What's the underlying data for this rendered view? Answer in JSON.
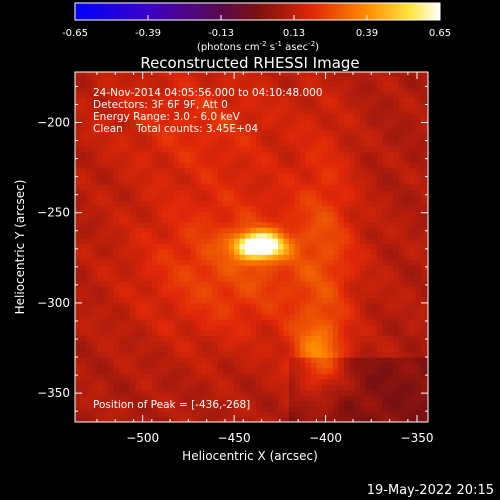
{
  "chart_data": {
    "type": "heatmap",
    "title": "Reconstructed RHESSI Image",
    "xlabel": "Heliocentric X (arcsec)",
    "ylabel": "Heliocentric Y (arcsec)",
    "xlim": [
      -537,
      -344
    ],
    "ylim": [
      -366,
      -172
    ],
    "x_ticks": [
      -500,
      -450,
      -400,
      -350
    ],
    "y_ticks": [
      -200,
      -250,
      -300,
      -350
    ],
    "colorbar": {
      "ticks": [
        -0.65,
        -0.39,
        -0.13,
        0.13,
        0.39,
        0.65
      ],
      "range": [
        -0.65,
        0.65
      ],
      "label_parts": [
        "(photons cm",
        "-2",
        " s",
        "-1",
        " asec",
        "-2",
        ")"
      ],
      "colormap": "blue-purple-red-yellow-white"
    },
    "annotations": [
      "24-Nov-2014 04:05:56.000 to 04:10:48.000",
      "Detectors: 3F 6F 9F, Att 0",
      "Energy Range: 3.0 - 6.0 keV",
      "Clean    Total counts: 3.45E+04"
    ],
    "peak_label": "Position of Peak = [-436,-268]",
    "sources": [
      {
        "x": -436,
        "y": -268,
        "sx": 9,
        "sy": 5,
        "amp": 0.65
      },
      {
        "x": -450,
        "y": -280,
        "sx": 40,
        "sy": 30,
        "amp": 0.16
      },
      {
        "x": -404,
        "y": -330,
        "sx": 10,
        "sy": 16,
        "amp": 0.22
      },
      {
        "x": -400,
        "y": -260,
        "sx": 12,
        "sy": 45,
        "amp": 0.1
      },
      {
        "x": -470,
        "y": -200,
        "sx": 40,
        "sy": 25,
        "amp": 0.1
      }
    ]
  },
  "timestamp": "19-May-2022 20:15"
}
